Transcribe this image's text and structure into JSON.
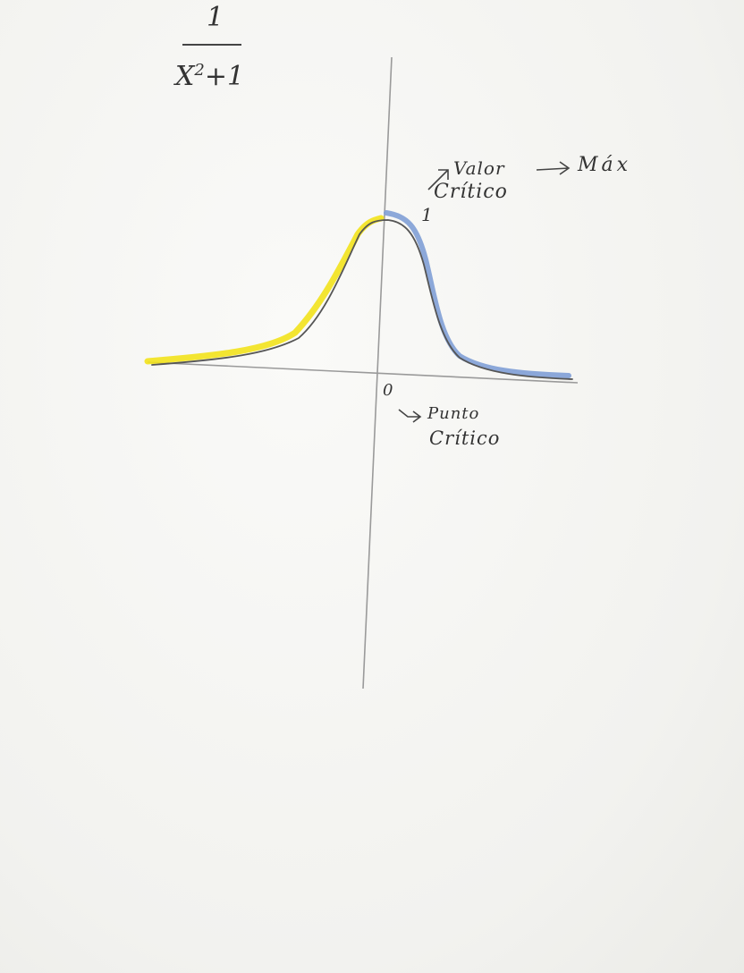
{
  "formula": {
    "numerator": "1",
    "denominator_base": "X",
    "denominator_exponent": "2",
    "denominator_rest": "+1"
  },
  "axes": {
    "origin_label": "0",
    "peak_label": "1"
  },
  "annotations": {
    "critical_value_line1": "Valor",
    "critical_value_line2": "Crítico",
    "maximum": "Máx",
    "critical_point_line1": "Punto",
    "critical_point_line2": "Crítico"
  },
  "colors": {
    "ink": "#333333",
    "axis": "#9a9a9a",
    "left_highlight": "#f2e21c",
    "right_highlight": "#7f9fd6",
    "paper": "#f4f4f2"
  }
}
